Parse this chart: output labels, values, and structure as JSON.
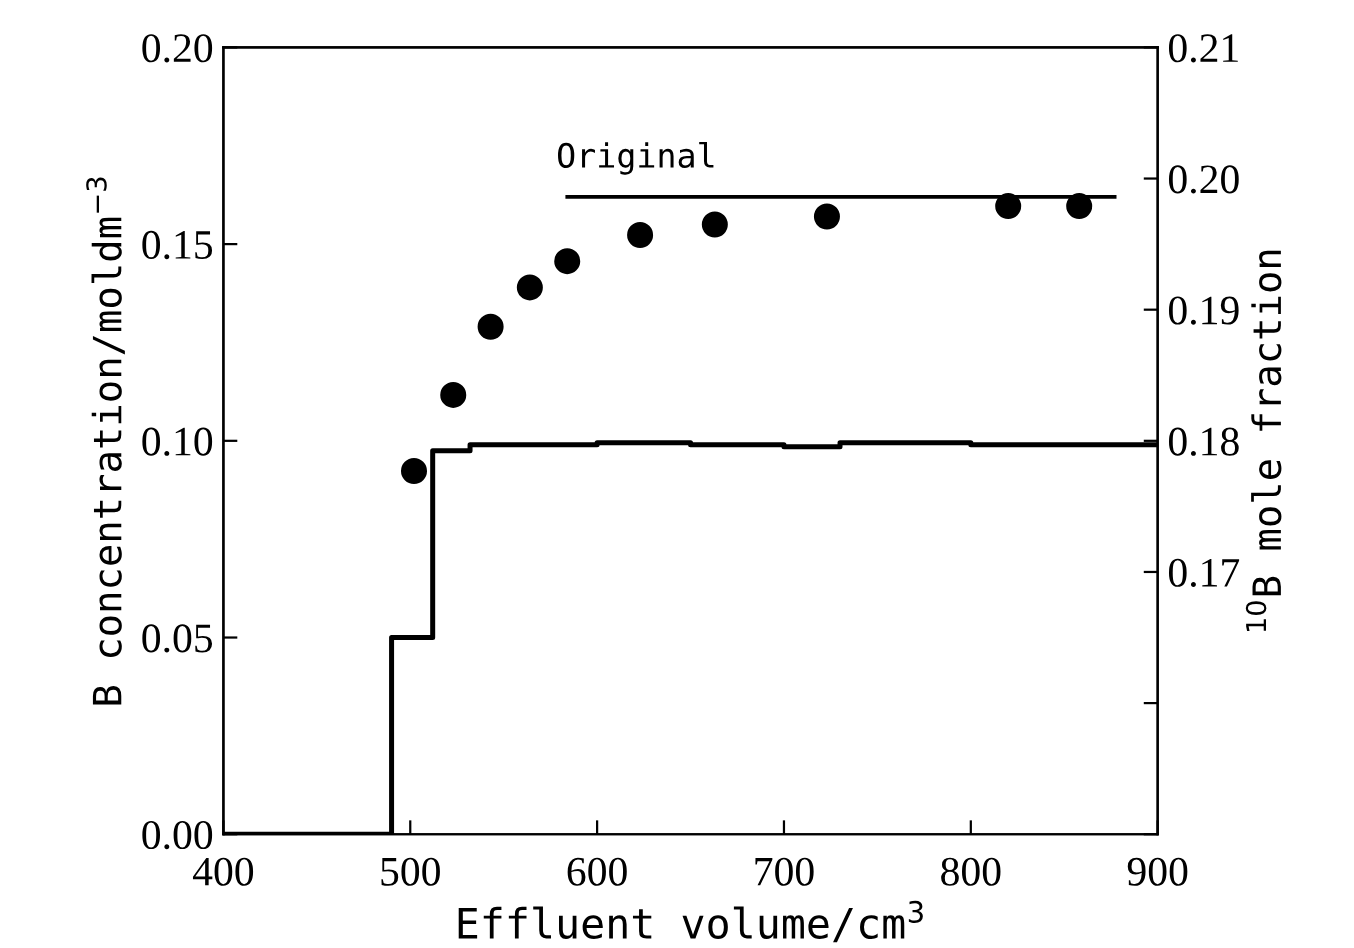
{
  "chart_data": {
    "type": "line",
    "xlabel": "Effluent volume/cm$^{3}$",
    "ylabel": "B concentration/moldm$^{−3}$",
    "y2label": "$^{10}$B mole fraction",
    "xlim": [
      400,
      900
    ],
    "xticks": [
      400,
      500,
      600,
      700,
      800,
      900
    ],
    "ylim": [
      0,
      0.2
    ],
    "yticks": [
      {
        "value": 0,
        "label": "0.00"
      },
      {
        "value": 0.05,
        "label": "0.05"
      },
      {
        "value": 0.1,
        "label": "0.10"
      },
      {
        "value": 0.15,
        "label": "0.15"
      },
      {
        "value": 0.2,
        "label": "0.20"
      }
    ],
    "y2lim": [
      0.15,
      0.21
    ],
    "y2ticks": [
      {
        "value": 0.15,
        "label": null
      },
      {
        "value": 0.16,
        "label": null
      },
      {
        "value": 0.17,
        "label": "0.17"
      },
      {
        "value": 0.18,
        "label": "0.18"
      },
      {
        "value": 0.19,
        "label": "0.19"
      },
      {
        "value": 0.2,
        "label": "0.20"
      },
      {
        "value": 0.21,
        "label": "0.21"
      }
    ],
    "grid": false,
    "series": [
      {
        "type": "step",
        "color": "#000000",
        "x": [
          400,
          490,
          512,
          532,
          600,
          650,
          700,
          730,
          800,
          850,
          900
        ],
        "values": [
          0,
          0.05,
          0.0975,
          0.099,
          0.0995,
          0.099,
          0.0985,
          0.0995,
          0.099,
          0.099,
          0.099
        ]
      },
      {
        "type": "scatter",
        "axis": "y2",
        "color": "#000000",
        "marker": "circle",
        "x": [
          502,
          523,
          543,
          564,
          584,
          623,
          663,
          723,
          820,
          858
        ],
        "values": [
          0.1777,
          0.1835,
          0.1887,
          0.1917,
          0.1937,
          0.1957,
          0.1965,
          0.1971,
          0.1979,
          0.1979
        ]
      },
      {
        "axis": "y2",
        "color": "#000000",
        "x": [
          584,
          877
        ],
        "values": [
          0.1986,
          0.1986
        ]
      }
    ],
    "annotations": [
      "Original"
    ]
  }
}
